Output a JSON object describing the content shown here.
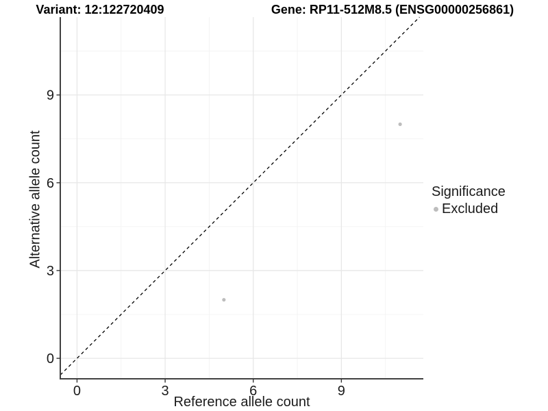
{
  "chart_data": {
    "type": "scatter",
    "titles": {
      "left": "Variant: 12:122720409",
      "right": "Gene: RP11-512M8.5 (ENSG00000256861)"
    },
    "xlabel": "Reference allele count",
    "ylabel": "Alternative allele count",
    "x_major_ticks": [
      0,
      3,
      6,
      9
    ],
    "y_major_ticks": [
      0,
      3,
      6,
      9
    ],
    "x_minor_ticks": [
      1.5,
      4.5,
      7.5,
      10.5
    ],
    "y_minor_ticks": [
      1.5,
      4.5,
      7.5,
      10.5
    ],
    "xlim": [
      -0.57,
      11.79
    ],
    "ylim": [
      -0.7,
      11.66
    ],
    "grid": true,
    "identity_line": {
      "slope": 1,
      "intercept": 0,
      "style": "dashed",
      "color": "#000000"
    },
    "series": [
      {
        "name": "Excluded",
        "color": "#bdbdbd",
        "points": [
          {
            "x": 5,
            "y": 2
          },
          {
            "x": 11,
            "y": 8
          }
        ]
      }
    ],
    "legend": {
      "title": "Significance",
      "position": "right",
      "items": [
        {
          "label": "Excluded",
          "color": "#bdbdbd"
        }
      ]
    },
    "colors": {
      "grid_major": "#e7e7e7",
      "grid_minor": "#f2f2f2",
      "axis_line": "#404040",
      "tick": "#333333",
      "text": "#1a1a1a",
      "point": "#bdbdbd"
    }
  }
}
